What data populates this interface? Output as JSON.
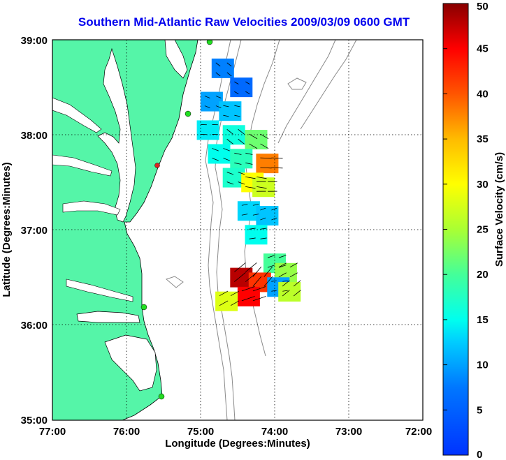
{
  "title": "Southern Mid-Atlantic Raw Velocities 2009/03/09 0600 GMT",
  "x_axis": {
    "label": "Longitude (Degrees:Minutes)",
    "ticks": [
      "77:00",
      "76:00",
      "75:00",
      "74:00",
      "73:00",
      "72:00"
    ]
  },
  "y_axis": {
    "label": "Latitude (Degrees:Minutes)",
    "ticks": [
      "39:00",
      "38:00",
      "37:00",
      "36:00",
      "35:00"
    ]
  },
  "colorbar": {
    "label": "Surface Velocity (cm/s)",
    "ticks": [
      "50",
      "45",
      "40",
      "35",
      "30",
      "25",
      "20",
      "15",
      "10",
      "5",
      "0"
    ],
    "range": [
      0,
      50
    ]
  },
  "colors": {
    "land": "#55f5a8",
    "title": "#0000ee",
    "station": "#22dd22",
    "station_alert": "#dd2222"
  },
  "chart_data": {
    "type": "heatmap",
    "title": "Southern Mid-Atlantic Raw Velocities 2009/03/09 0600 GMT",
    "xlabel": "Longitude (Degrees:Minutes)",
    "ylabel": "Latitude (Degrees:Minutes)",
    "xlim": [
      -77,
      -72
    ],
    "ylim": [
      35,
      39
    ],
    "grid": true,
    "colorbar_label": "Surface Velocity (cm/s)",
    "clim": [
      0,
      50
    ],
    "velocity_cells": [
      {
        "lon": -74.7,
        "lat": 38.7,
        "speed": 8
      },
      {
        "lon": -74.45,
        "lat": 38.5,
        "speed": 6
      },
      {
        "lon": -74.85,
        "lat": 38.35,
        "speed": 10
      },
      {
        "lon": -74.6,
        "lat": 38.25,
        "speed": 12
      },
      {
        "lon": -74.9,
        "lat": 38.05,
        "speed": 14
      },
      {
        "lon": -74.55,
        "lat": 38.0,
        "speed": 16
      },
      {
        "lon": -74.25,
        "lat": 37.95,
        "speed": 22
      },
      {
        "lon": -74.75,
        "lat": 37.8,
        "speed": 15
      },
      {
        "lon": -74.45,
        "lat": 37.75,
        "speed": 18
      },
      {
        "lon": -74.1,
        "lat": 37.7,
        "speed": 38
      },
      {
        "lon": -74.55,
        "lat": 37.55,
        "speed": 17
      },
      {
        "lon": -74.3,
        "lat": 37.5,
        "speed": 30
      },
      {
        "lon": -74.15,
        "lat": 37.45,
        "speed": 27
      },
      {
        "lon": -74.35,
        "lat": 37.2,
        "speed": 13
      },
      {
        "lon": -74.1,
        "lat": 37.15,
        "speed": 12
      },
      {
        "lon": -74.25,
        "lat": 36.95,
        "speed": 15
      },
      {
        "lon": -74.0,
        "lat": 36.65,
        "speed": 20
      },
      {
        "lon": -73.85,
        "lat": 36.55,
        "speed": 24
      },
      {
        "lon": -74.45,
        "lat": 36.5,
        "speed": 48
      },
      {
        "lon": -74.2,
        "lat": 36.45,
        "speed": 42
      },
      {
        "lon": -73.95,
        "lat": 36.4,
        "speed": 10
      },
      {
        "lon": -74.35,
        "lat": 36.3,
        "speed": 45
      },
      {
        "lon": -74.65,
        "lat": 36.25,
        "speed": 28
      },
      {
        "lon": -73.8,
        "lat": 36.35,
        "speed": 26
      }
    ]
  }
}
